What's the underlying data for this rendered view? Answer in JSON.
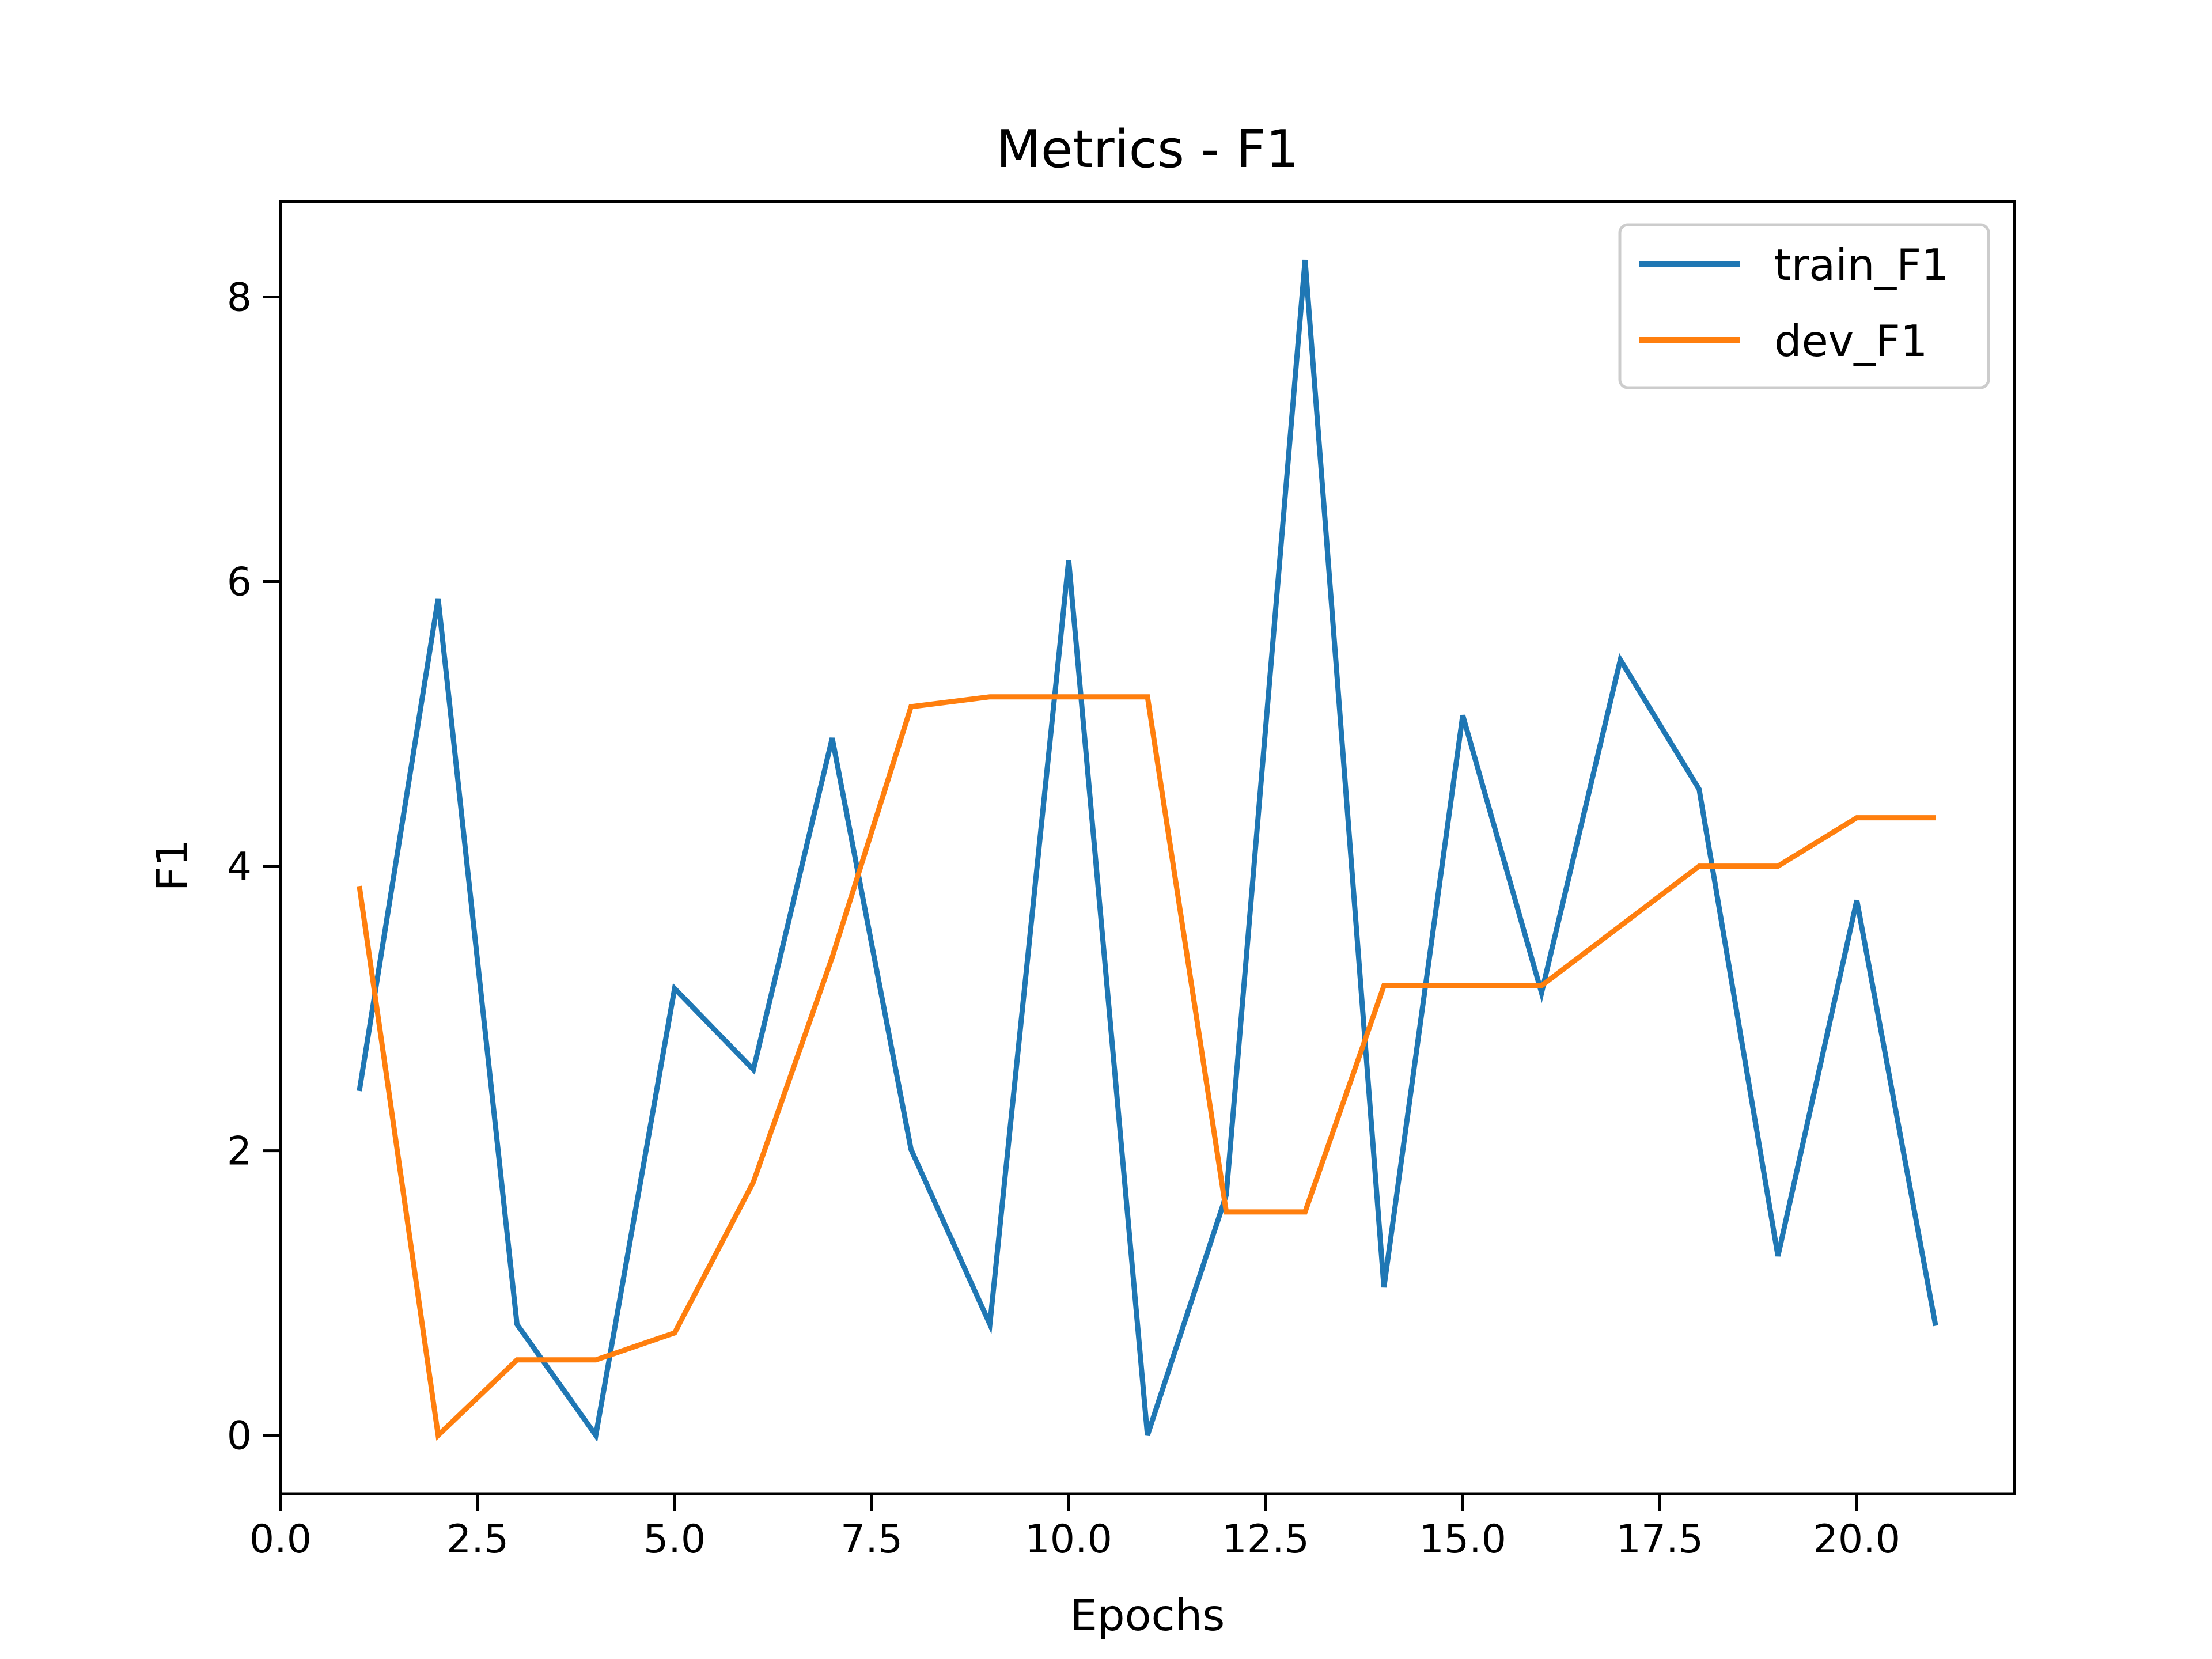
{
  "chart_data": {
    "type": "line",
    "title": "Metrics - F1",
    "xlabel": "Epochs",
    "ylabel": "F1",
    "xlim": [
      0,
      22
    ],
    "ylim": [
      -0.41,
      8.67
    ],
    "xticks": [
      0,
      2.5,
      5,
      7.5,
      10,
      12.5,
      15,
      17.5,
      20
    ],
    "xtick_labels": [
      "0.0",
      "2.5",
      "5.0",
      "7.5",
      "10.0",
      "12.5",
      "15.0",
      "17.5",
      "20.0"
    ],
    "yticks": [
      0,
      2,
      4,
      6,
      8
    ],
    "ytick_labels": [
      "0",
      "2",
      "4",
      "6",
      "8"
    ],
    "grid": false,
    "legend_position": "top-right",
    "x": [
      1,
      2,
      3,
      4,
      5,
      6,
      7,
      8,
      9,
      10,
      11,
      12,
      13,
      14,
      15,
      16,
      17,
      18,
      19,
      20,
      21
    ],
    "series": [
      {
        "name": "train_F1",
        "color": "#1f77b4",
        "values": [
          2.42,
          5.88,
          0.78,
          0.0,
          3.14,
          2.57,
          4.9,
          2.01,
          0.78,
          6.15,
          0.0,
          1.69,
          8.26,
          1.04,
          5.06,
          3.11,
          5.45,
          4.54,
          1.26,
          3.76,
          0.77
        ]
      },
      {
        "name": "dev_F1",
        "color": "#ff7f0e",
        "values": [
          3.86,
          0.0,
          0.53,
          0.53,
          0.72,
          1.78,
          3.36,
          5.12,
          5.19,
          5.19,
          5.19,
          1.57,
          1.57,
          3.16,
          3.16,
          3.16,
          3.58,
          4.0,
          4.0,
          4.34,
          4.34
        ]
      }
    ]
  }
}
